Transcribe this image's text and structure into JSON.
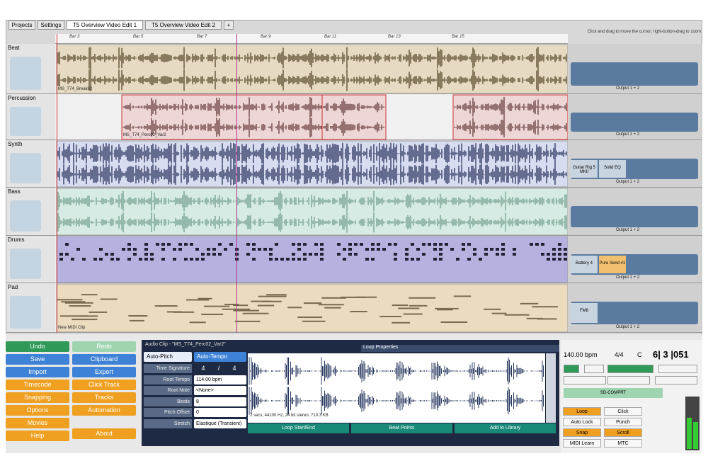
{
  "tabs": [
    "Projects",
    "Settings",
    "T5 Overview Video Edit 1",
    "T5 Overview Video Edit 2",
    "+"
  ],
  "hint": "Click and drag to move the cursor; right-button-drag to zoom",
  "ruler": [
    "Bar 3",
    "Bar 5",
    "Bar 7",
    "Bar 9",
    "Bar 11",
    "Bar 13",
    "Bar 15"
  ],
  "tracks": [
    {
      "name": "Beat",
      "clip": "MS_T74_Break02",
      "output": "Output 1 + 2"
    },
    {
      "name": "Percussion",
      "clip": "MS_T74_Perc02_Var2",
      "output": "Output 1 + 2"
    },
    {
      "name": "Synth",
      "plugins": [
        "Guitar Rig 5 MKII",
        "Solid EQ"
      ],
      "output": "Output 1 + 2"
    },
    {
      "name": "Bass",
      "output": "Output 1 + 2"
    },
    {
      "name": "Drums",
      "plugins": [
        "Battery 4",
        "Pure Send #1"
      ],
      "output": "Output 1 + 2"
    },
    {
      "name": "Pad",
      "clip": "New MIDI Clip",
      "plugins": [
        "FM8"
      ],
      "output": "Output 1 + 2"
    }
  ],
  "left_buttons": [
    [
      "Undo",
      "Redo"
    ],
    [
      "Save",
      "Clipboard"
    ],
    [
      "Import",
      "Export"
    ],
    [
      "Timecode",
      "Click Track"
    ],
    [
      "Snapping",
      "Tracks"
    ],
    [
      "Options",
      "Automation"
    ],
    [
      "Movies",
      null
    ],
    [
      "Help",
      "About"
    ]
  ],
  "clip_panel": {
    "title": "Audio Clip - \"MS_T74_Perc02_Var2\"",
    "auto_pitch": "Auto-Pitch",
    "auto_tempo": "Auto-Tempo",
    "tab": "Loop Properties",
    "fields": [
      [
        "Time Signature",
        "4",
        "/",
        "4"
      ],
      [
        "Root Tempo",
        "114.00 bpm"
      ],
      [
        "Root Note",
        "<None>"
      ],
      [
        "Beats",
        "8"
      ],
      [
        "Pitch Offset",
        "0"
      ],
      [
        "Stretch",
        "Elastique (Transient)"
      ]
    ],
    "info": "2 secs, 44100 Hz, 24 bit stereo, 710.3 KB",
    "buttons": [
      "Loop Start/End",
      "Beat Points",
      "Add to Library"
    ]
  },
  "transport": {
    "tempo": "140.00 bpm",
    "timesig": "4/4",
    "key": "C",
    "position": "6| 3 |051",
    "device": "SD-COMPRT",
    "toggles": [
      "Loop",
      "Click",
      "Auto Lock",
      "Punch",
      "Snap",
      "Scroll",
      "MIDI Learn",
      "MTC"
    ]
  }
}
